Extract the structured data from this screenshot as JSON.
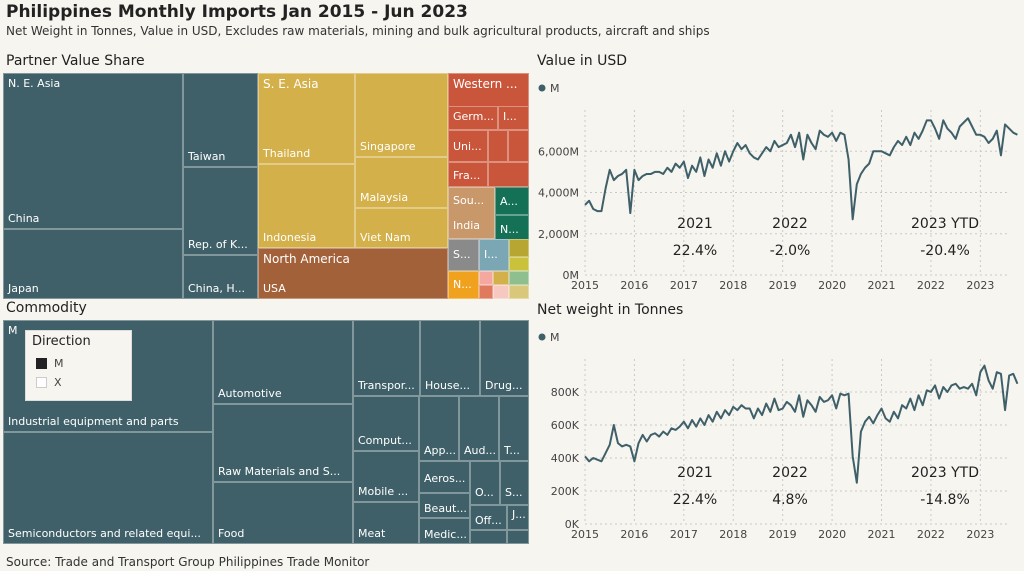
{
  "header": {
    "title": "Philippines Monthly Imports Jan 2015 - Jun 2023",
    "subtitle": "Net Weight in Tonnes, Value in USD, Excludes raw materials, mining and bulk agricultural products, aircraft and ships"
  },
  "partner": {
    "section_title": "Partner Value Share",
    "labels": {
      "ne_asia": "N. E. Asia",
      "china": "China",
      "japan": "Japan",
      "taiwan": "Taiwan",
      "rep_k": "Rep. of K...",
      "china_h": "China, H...",
      "se_asia": "S. E. Asia",
      "thailand": "Thailand",
      "indonesia": "Indonesia",
      "singapore": "Singapore",
      "malaysia": "Malaysia",
      "vietnam": "Viet Nam",
      "north_america": "North America",
      "usa": "USA",
      "western": "Western ...",
      "germ": "Germ...",
      "uni": "Uni...",
      "fra": "Fra...",
      "i_small": "I...",
      "sou": "Sou...",
      "india": "India",
      "a_small": "A...",
      "n_small": "N...",
      "s_small": "S...",
      "i2_small": "I...",
      "n2_small": "N..."
    }
  },
  "commodity": {
    "section_title": "Commodity",
    "m_label": "M",
    "labels": {
      "industrial": "Industrial equipment and parts",
      "semis": "Semiconductors and related equi...",
      "automotive": "Automotive",
      "raw": "Raw Materials and S...",
      "food": "Food",
      "transport": "Transpor...",
      "house": "House...",
      "drug": "Drug...",
      "computer": "Comput...",
      "app": "App...",
      "aud": "Aud...",
      "t": "T...",
      "mobile": "Mobile ...",
      "aeros": "Aeros...",
      "o": "O...",
      "s": "S...",
      "beaut": "Beaut...",
      "off": "Off...",
      "j": "J...",
      "meat": "Meat",
      "medic": "Medic..."
    },
    "legend": {
      "title": "Direction",
      "items": [
        "M",
        "X"
      ]
    }
  },
  "source": "Source: Trade and Transport Group Philippines Trade Monitor",
  "colors": {
    "main": "#3f6068",
    "se_asia": "#d4b04a",
    "north_america": "#a3613a",
    "western": "#c9553a",
    "grid": "#c9c9c9"
  },
  "chart_data": [
    {
      "type": "line",
      "title": "Value in USD",
      "legend": "M",
      "yticks": [
        "0M",
        "2,000M",
        "4,000M",
        "6,000M"
      ],
      "ylim": [
        0,
        8000
      ],
      "xticks": [
        "2015",
        "2016",
        "2017",
        "2018",
        "2019",
        "2020",
        "2021",
        "2022",
        "2023"
      ],
      "xlim": [
        2015.0,
        2023.6
      ],
      "annotations": [
        {
          "year": "2021",
          "pct": "22.4%"
        },
        {
          "year": "2022",
          "pct": "-2.0%"
        },
        {
          "year": "2023 YTD",
          "pct": "-20.4%"
        }
      ],
      "series": [
        {
          "values": [
            3400,
            3600,
            3200,
            3100,
            3100,
            4200,
            5100,
            4600,
            4800,
            4900,
            5100,
            3000,
            5100,
            4600,
            4800,
            4900,
            4900,
            5000,
            5000,
            4900,
            5200,
            5000,
            5400,
            5200,
            5500,
            4700,
            5300,
            5000,
            5700,
            4800,
            5600,
            5200,
            5900,
            5300,
            6000,
            5500,
            6000,
            6400,
            6100,
            6300,
            5900,
            5700,
            5600,
            5900,
            6200,
            6000,
            6500,
            6200,
            6300,
            6400,
            6800,
            6200,
            6900,
            5600,
            6800,
            6400,
            6100,
            7000,
            6800,
            6700,
            6900,
            6500,
            6900,
            6800,
            5600,
            2700,
            4400,
            4900,
            5200,
            5400,
            6000,
            6000,
            6000,
            5900,
            5800,
            6200,
            6500,
            6300,
            6700,
            6300,
            6900,
            6600,
            7000,
            7500,
            7500,
            7100,
            6600,
            7500,
            7100,
            6900,
            6600,
            7200,
            7400,
            7600,
            7200,
            6800,
            6800,
            6700,
            6400,
            6600,
            7000,
            5800,
            7300,
            7100,
            6900,
            6800
          ]
        }
      ]
    },
    {
      "type": "line",
      "title": "Net weight in Tonnes",
      "legend": "M",
      "yticks": [
        "0K",
        "200K",
        "400K",
        "600K",
        "800K"
      ],
      "ylim": [
        0,
        1000
      ],
      "xticks": [
        "2015",
        "2016",
        "2017",
        "2018",
        "2019",
        "2020",
        "2021",
        "2022",
        "2023"
      ],
      "xlim": [
        2015.0,
        2023.6
      ],
      "annotations": [
        {
          "year": "2021",
          "pct": "22.4%"
        },
        {
          "year": "2022",
          "pct": "4.8%"
        },
        {
          "year": "2023 YTD",
          "pct": "-14.8%"
        }
      ],
      "series": [
        {
          "values": [
            410,
            380,
            400,
            390,
            380,
            430,
            480,
            600,
            490,
            470,
            480,
            470,
            380,
            490,
            540,
            500,
            540,
            550,
            530,
            560,
            540,
            580,
            570,
            590,
            620,
            580,
            630,
            590,
            640,
            600,
            660,
            620,
            680,
            640,
            690,
            660,
            710,
            690,
            720,
            700,
            700,
            640,
            700,
            660,
            730,
            680,
            760,
            690,
            700,
            740,
            720,
            680,
            780,
            650,
            750,
            720,
            680,
            770,
            740,
            750,
            780,
            700,
            790,
            780,
            790,
            410,
            250,
            560,
            620,
            650,
            610,
            660,
            700,
            640,
            620,
            680,
            640,
            720,
            700,
            760,
            690,
            780,
            720,
            810,
            800,
            840,
            760,
            830,
            800,
            840,
            850,
            820,
            830,
            820,
            850,
            780,
            920,
            960,
            870,
            820,
            920,
            910,
            690,
            900,
            910,
            850
          ]
        }
      ]
    }
  ]
}
